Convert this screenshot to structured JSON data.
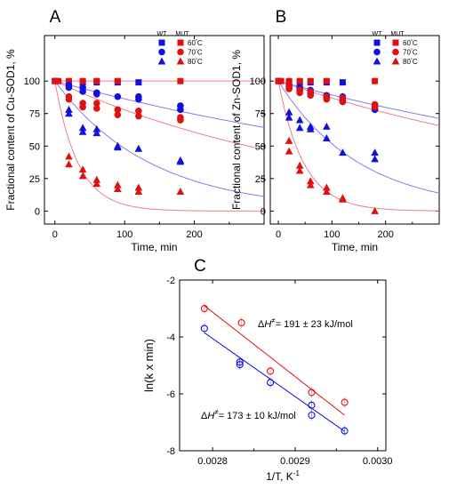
{
  "chart_data": [
    {
      "type": "scatter",
      "panel": "A",
      "ylabel": "Fractional content of Cu-SOD1, %",
      "xlabel": "Time, min",
      "xlim": [
        -15,
        300
      ],
      "ylim": [
        -10,
        135
      ],
      "xticks": [
        0,
        100,
        200
      ],
      "yticks": [
        0,
        25,
        50,
        75,
        100
      ],
      "grid": false,
      "legend": {
        "placement": "top-right",
        "columns": [
          {
            "label": "WT",
            "color": "#1010e0"
          },
          {
            "label": "MUT",
            "color": "#e01010"
          }
        ],
        "rows": [
          {
            "marker": "square",
            "temp": "60",
            "unit": "°C"
          },
          {
            "marker": "circle",
            "temp": "70",
            "unit": "°C"
          },
          {
            "marker": "triangle",
            "temp": "80",
            "unit": "°C"
          }
        ]
      },
      "series": [
        {
          "group": "WT",
          "temp": "60",
          "marker": "square",
          "color": "#1010e0",
          "points": [
            [
              0,
              100
            ],
            [
              20,
              99
            ],
            [
              40,
              99
            ],
            [
              60,
              99
            ],
            [
              90,
              99
            ],
            [
              120,
              99
            ]
          ]
        },
        {
          "group": "MUT",
          "temp": "60",
          "marker": "square",
          "color": "#e01010",
          "points": [
            [
              0,
              100
            ],
            [
              5,
              100
            ],
            [
              20,
              100
            ],
            [
              40,
              100
            ],
            [
              60,
              100
            ],
            [
              90,
              100
            ],
            [
              180,
              100
            ]
          ]
        },
        {
          "group": "WT",
          "temp": "70",
          "marker": "circle",
          "color": "#1010e0",
          "points": [
            [
              20,
              97
            ],
            [
              20,
              95
            ],
            [
              40,
              92
            ],
            [
              40,
              95
            ],
            [
              60,
              91
            ],
            [
              60,
              90
            ],
            [
              90,
              88
            ],
            [
              120,
              88
            ],
            [
              120,
              86
            ],
            [
              180,
              81
            ],
            [
              180,
              78
            ]
          ]
        },
        {
          "group": "MUT",
          "temp": "70",
          "marker": "circle",
          "color": "#e01010",
          "points": [
            [
              20,
              88
            ],
            [
              20,
              86
            ],
            [
              40,
              83
            ],
            [
              40,
              80
            ],
            [
              60,
              83
            ],
            [
              60,
              79
            ],
            [
              90,
              78
            ],
            [
              90,
              74
            ],
            [
              120,
              77
            ],
            [
              120,
              73
            ],
            [
              180,
              72
            ],
            [
              180,
              70
            ]
          ]
        },
        {
          "group": "WT",
          "temp": "80",
          "marker": "triangle",
          "color": "#1010e0",
          "points": [
            [
              20,
              78
            ],
            [
              20,
              75
            ],
            [
              40,
              64
            ],
            [
              40,
              61
            ],
            [
              60,
              63
            ],
            [
              60,
              60
            ],
            [
              90,
              50
            ],
            [
              90,
              49
            ],
            [
              120,
              48
            ],
            [
              180,
              39
            ],
            [
              180,
              38
            ]
          ]
        },
        {
          "group": "MUT",
          "temp": "80",
          "marker": "triangle",
          "color": "#e01010",
          "points": [
            [
              20,
              42
            ],
            [
              20,
              36
            ],
            [
              40,
              32
            ],
            [
              40,
              27
            ],
            [
              60,
              24
            ],
            [
              60,
              21
            ],
            [
              90,
              20
            ],
            [
              90,
              17
            ],
            [
              120,
              18
            ],
            [
              120,
              15
            ],
            [
              180,
              15
            ]
          ]
        }
      ],
      "fits": [
        {
          "color": "#7f7ff0",
          "form": "exp",
          "rate": 0.00147,
          "note": "WT 70"
        },
        {
          "color": "#f07f7f",
          "form": "exp",
          "rate": 0.0025,
          "note": "MUT 70"
        },
        {
          "color": "#7f7ff0",
          "form": "exp",
          "rate": 0.0073,
          "note": "WT 80"
        },
        {
          "color": "#f07f7f",
          "form": "exp",
          "rate": 0.03,
          "note": "MUT 80"
        },
        {
          "color": "#f07f7f",
          "form": "const",
          "value": 100,
          "note": "MUT 60"
        }
      ]
    },
    {
      "type": "scatter",
      "panel": "B",
      "ylabel": "Fractional content of Zn-SOD1, %",
      "xlabel": "Time, min",
      "xlim": [
        -15,
        300
      ],
      "ylim": [
        -10,
        135
      ],
      "xticks": [
        0,
        100,
        200
      ],
      "yticks": [
        0,
        25,
        50,
        75,
        100
      ],
      "grid": false,
      "legend": {
        "placement": "top-right",
        "columns": [
          {
            "label": "WT",
            "color": "#1010e0"
          },
          {
            "label": "MUT",
            "color": "#e01010"
          }
        ],
        "rows": [
          {
            "marker": "square",
            "temp": "60",
            "unit": "°C"
          },
          {
            "marker": "circle",
            "temp": "70",
            "unit": "°C"
          },
          {
            "marker": "triangle",
            "temp": "80",
            "unit": "°C"
          }
        ]
      },
      "series": [
        {
          "group": "WT",
          "temp": "60",
          "marker": "square",
          "color": "#1010e0",
          "points": [
            [
              0,
              100
            ],
            [
              20,
              99
            ],
            [
              40,
              99
            ],
            [
              60,
              99
            ],
            [
              90,
              99
            ],
            [
              120,
              99
            ]
          ]
        },
        {
          "group": "MUT",
          "temp": "60",
          "marker": "square",
          "color": "#e01010",
          "points": [
            [
              0,
              100
            ],
            [
              5,
              100
            ],
            [
              20,
              100
            ],
            [
              40,
              100
            ],
            [
              60,
              100
            ],
            [
              90,
              100
            ],
            [
              180,
              100
            ]
          ]
        },
        {
          "group": "WT",
          "temp": "70",
          "marker": "circle",
          "color": "#1010e0",
          "points": [
            [
              20,
              97
            ],
            [
              20,
              95
            ],
            [
              40,
              95
            ],
            [
              40,
              93
            ],
            [
              60,
              93
            ],
            [
              60,
              91
            ],
            [
              90,
              89
            ],
            [
              90,
              87
            ],
            [
              120,
              88
            ],
            [
              120,
              85
            ],
            [
              180,
              81
            ],
            [
              180,
              78
            ]
          ]
        },
        {
          "group": "MUT",
          "temp": "70",
          "marker": "circle",
          "color": "#e01010",
          "points": [
            [
              20,
              97
            ],
            [
              20,
              94
            ],
            [
              40,
              93
            ],
            [
              40,
              91
            ],
            [
              60,
              92
            ],
            [
              60,
              89
            ],
            [
              90,
              88
            ],
            [
              90,
              86
            ],
            [
              120,
              87
            ],
            [
              120,
              84
            ],
            [
              180,
              82
            ],
            [
              180,
              80
            ]
          ]
        },
        {
          "group": "WT",
          "temp": "80",
          "marker": "triangle",
          "color": "#1010e0",
          "points": [
            [
              20,
              76
            ],
            [
              20,
              72
            ],
            [
              40,
              70
            ],
            [
              40,
              64
            ],
            [
              60,
              65
            ],
            [
              60,
              63
            ],
            [
              90,
              65
            ],
            [
              90,
              56
            ],
            [
              120,
              45
            ],
            [
              180,
              45
            ],
            [
              180,
              40
            ]
          ]
        },
        {
          "group": "MUT",
          "temp": "80",
          "marker": "triangle",
          "color": "#e01010",
          "points": [
            [
              20,
              54
            ],
            [
              20,
              46
            ],
            [
              40,
              35
            ],
            [
              40,
              31
            ],
            [
              60,
              23
            ],
            [
              60,
              20
            ],
            [
              90,
              18
            ],
            [
              90,
              15
            ],
            [
              120,
              10
            ],
            [
              120,
              9
            ],
            [
              180,
              0
            ]
          ]
        }
      ],
      "fits": [
        {
          "color": "#7f7ff0",
          "form": "exp",
          "rate": 0.00113,
          "note": "WT 70"
        },
        {
          "color": "#f07f7f",
          "form": "exp",
          "rate": 0.0014,
          "note": "MUT 70"
        },
        {
          "color": "#7f7ff0",
          "form": "exp",
          "rate": 0.0066,
          "note": "WT 80"
        },
        {
          "color": "#f07f7f",
          "form": "exp",
          "rate": 0.021,
          "note": "MUT 80"
        }
      ]
    },
    {
      "type": "scatter",
      "panel": "C",
      "ylabel": "ln(k x min)",
      "xlabel": "1/T, K",
      "xlabel_superscript": "-1",
      "xlim": [
        0.00276,
        0.00301
      ],
      "ylim": [
        -8,
        -2
      ],
      "xticks": [
        0.0028,
        0.0029,
        0.003
      ],
      "xtick_labels": [
        "0.0028",
        "0.0029",
        "0.0030"
      ],
      "yticks": [
        -8,
        -6,
        -4,
        -2
      ],
      "grid": false,
      "series": [
        {
          "group": "MUT",
          "marker": "open-circle",
          "color": "#e01010",
          "points": [
            [
              0.00279,
              -3.0
            ],
            [
              0.002835,
              -3.5
            ],
            [
              0.00287,
              -5.2
            ],
            [
              0.00292,
              -5.95
            ],
            [
              0.00296,
              -6.3
            ]
          ]
        },
        {
          "group": "WT",
          "marker": "open-circle",
          "color": "#1010e0",
          "points": [
            [
              0.00279,
              -3.7
            ],
            [
              0.002833,
              -4.88
            ],
            [
              0.002833,
              -4.97
            ],
            [
              0.00287,
              -5.6
            ],
            [
              0.00292,
              -6.4
            ],
            [
              0.00292,
              -6.75
            ],
            [
              0.00296,
              -7.3
            ]
          ]
        }
      ],
      "fits": [
        {
          "color": "#e01010",
          "form": "line",
          "from": [
            0.00279,
            -2.9
          ],
          "to": [
            0.00296,
            -6.75
          ]
        },
        {
          "color": "#1010e0",
          "form": "line",
          "from": [
            0.00279,
            -3.85
          ],
          "to": [
            0.00296,
            -7.32
          ]
        }
      ],
      "annotations": [
        {
          "prefix": "Δ",
          "symbol": "H",
          "sup": "≠",
          "value": "= 191 ± 23 kJ/mol",
          "color": "#000000"
        },
        {
          "prefix": "Δ",
          "symbol": "H",
          "sup": "≠",
          "value": "= 173 ± 10 kJ/mol",
          "color": "#000000"
        }
      ]
    }
  ]
}
